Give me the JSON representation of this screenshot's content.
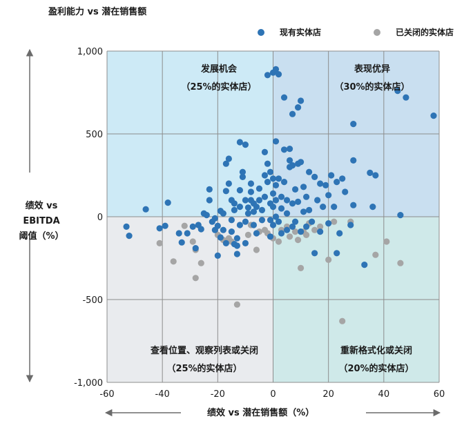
{
  "chart_data": {
    "type": "scatter",
    "title": "盈利能力 vs 潜在销售额",
    "xlabel": "绩效 vs 潜在销售额（%）",
    "ylabel_line1": "绩效 vs EBITDA",
    "ylabel_line2": "阈值（%）",
    "xlim": [
      -60,
      60
    ],
    "ylim": [
      -1000,
      1000
    ],
    "xticks": [
      "-60",
      "-40",
      "-20",
      "0",
      "20",
      "40",
      "60"
    ],
    "yticks": [
      "1,000",
      "500",
      "0",
      "-500",
      "-1,000"
    ],
    "legend": [
      "现有实体店",
      "已关闭的实体店"
    ],
    "legend_position": "top-right",
    "grid": true,
    "quadrants": {
      "top_left": {
        "line1": "发展机会",
        "line2": "（25%的实体店）",
        "color": "#cdeaf6"
      },
      "top_right": {
        "line1": "表现优异",
        "line2": "（30%的实体店）",
        "color": "#c9dff0"
      },
      "bottom_left": {
        "line1": "查看位置、观察列表或关闭",
        "line2": "（25%的实体店）",
        "color": "#e9ebee"
      },
      "bottom_right": {
        "line1": "重新格式化或关闭",
        "line2": "（20%的实体店）",
        "color": "#cfe9e9"
      }
    },
    "series": [
      {
        "name": "现有实体店",
        "color": "#2e74b5",
        "points": [
          [
            -53,
            -60
          ],
          [
            -52,
            -115
          ],
          [
            -46,
            45
          ],
          [
            -41,
            -70
          ],
          [
            -39,
            -55
          ],
          [
            -38,
            85
          ],
          [
            -34,
            -100
          ],
          [
            -33,
            -155
          ],
          [
            -31,
            -100
          ],
          [
            -29,
            -60
          ],
          [
            -28,
            -190
          ],
          [
            -27,
            -50
          ],
          [
            -26,
            -75
          ],
          [
            -25,
            20
          ],
          [
            -24,
            10
          ],
          [
            -23,
            165
          ],
          [
            -23,
            100
          ],
          [
            -22,
            -30
          ],
          [
            -21,
            -10
          ],
          [
            -21,
            -80
          ],
          [
            -20,
            -235
          ],
          [
            -20,
            -55
          ],
          [
            -19,
            -125
          ],
          [
            -19,
            35
          ],
          [
            -18,
            20
          ],
          [
            -18,
            -80
          ],
          [
            -17,
            -160
          ],
          [
            -17,
            155
          ],
          [
            -17,
            320
          ],
          [
            -16,
            350
          ],
          [
            -16,
            200
          ],
          [
            -15,
            -20
          ],
          [
            -15,
            -90
          ],
          [
            -15,
            100
          ],
          [
            -14,
            -165
          ],
          [
            -14,
            80
          ],
          [
            -14,
            40
          ],
          [
            -13,
            -130
          ],
          [
            -13,
            -175
          ],
          [
            -13,
            -225
          ],
          [
            -12,
            450
          ],
          [
            -12,
            160
          ],
          [
            -12,
            -50
          ],
          [
            -12,
            60
          ],
          [
            -11,
            270
          ],
          [
            -11,
            240
          ],
          [
            -10,
            -160
          ],
          [
            -10,
            435
          ],
          [
            -10,
            100
          ],
          [
            -10,
            -30
          ],
          [
            -9,
            55
          ],
          [
            -9,
            20
          ],
          [
            -8,
            150
          ],
          [
            -8,
            200
          ],
          [
            -8,
            100
          ],
          [
            -7,
            80
          ],
          [
            -7,
            -50
          ],
          [
            -7,
            30
          ],
          [
            -6,
            -100
          ],
          [
            -6,
            60
          ],
          [
            -5,
            170
          ],
          [
            -5,
            100
          ],
          [
            -4,
            40
          ],
          [
            -4,
            -20
          ],
          [
            -3,
            120
          ],
          [
            -3,
            390
          ],
          [
            -3,
            250
          ],
          [
            -2,
            855
          ],
          [
            -2,
            210
          ],
          [
            -2,
            320
          ],
          [
            -1,
            270
          ],
          [
            -1,
            80
          ],
          [
            -1,
            -20
          ],
          [
            -1,
            -120
          ],
          [
            0,
            870
          ],
          [
            0,
            230
          ],
          [
            0,
            140
          ],
          [
            0,
            60
          ],
          [
            0,
            -50
          ],
          [
            1,
            890
          ],
          [
            1,
            455
          ],
          [
            1,
            190
          ],
          [
            1,
            100
          ],
          [
            1,
            0
          ],
          [
            2,
            230
          ],
          [
            2,
            -30
          ],
          [
            2,
            860
          ],
          [
            3,
            120
          ],
          [
            3,
            -100
          ],
          [
            3,
            50
          ],
          [
            4,
            720
          ],
          [
            4,
            405
          ],
          [
            4,
            210
          ],
          [
            5,
            100
          ],
          [
            5,
            20
          ],
          [
            5,
            -80
          ],
          [
            6,
            410
          ],
          [
            6,
            300
          ],
          [
            6,
            340
          ],
          [
            7,
            620
          ],
          [
            7,
            310
          ],
          [
            7,
            80
          ],
          [
            7,
            -60
          ],
          [
            8,
            165
          ],
          [
            8,
            -30
          ],
          [
            9,
            660
          ],
          [
            9,
            320
          ],
          [
            9,
            90
          ],
          [
            10,
            700
          ],
          [
            10,
            330
          ],
          [
            10,
            -90
          ],
          [
            11,
            180
          ],
          [
            11,
            30
          ],
          [
            12,
            120
          ],
          [
            12,
            -60
          ],
          [
            13,
            270
          ],
          [
            13,
            40
          ],
          [
            14,
            -30
          ],
          [
            15,
            -220
          ],
          [
            15,
            240
          ],
          [
            16,
            100
          ],
          [
            17,
            -90
          ],
          [
            17,
            200
          ],
          [
            18,
            60
          ],
          [
            19,
            190
          ],
          [
            20,
            130
          ],
          [
            20,
            -40
          ],
          [
            21,
            250
          ],
          [
            22,
            60
          ],
          [
            23,
            -220
          ],
          [
            23,
            210
          ],
          [
            24,
            -100
          ],
          [
            25,
            230
          ],
          [
            26,
            150
          ],
          [
            28,
            -50
          ],
          [
            29,
            560
          ],
          [
            29,
            340
          ],
          [
            29,
            70
          ],
          [
            33,
            -290
          ],
          [
            35,
            265
          ],
          [
            36,
            60
          ],
          [
            37,
            250
          ],
          [
            45,
            760
          ],
          [
            46,
            10
          ],
          [
            48,
            720
          ],
          [
            58,
            610
          ]
        ]
      },
      {
        "name": "已关闭的实体店",
        "color": "#a5a5a5",
        "points": [
          [
            -41,
            -160
          ],
          [
            -36,
            -270
          ],
          [
            -32,
            -55
          ],
          [
            -29,
            -150
          ],
          [
            -28,
            -200
          ],
          [
            -28,
            -370
          ],
          [
            -26,
            -280
          ],
          [
            -20,
            -110
          ],
          [
            -18,
            -140
          ],
          [
            -16,
            -130
          ],
          [
            -15,
            -150
          ],
          [
            -13,
            -530
          ],
          [
            -9,
            -110
          ],
          [
            -8,
            -50
          ],
          [
            -6,
            -200
          ],
          [
            -5,
            -90
          ],
          [
            -3,
            -80
          ],
          [
            -2,
            -100
          ],
          [
            0,
            -130
          ],
          [
            2,
            -150
          ],
          [
            3,
            -80
          ],
          [
            5,
            -60
          ],
          [
            6,
            -120
          ],
          [
            8,
            -90
          ],
          [
            9,
            -140
          ],
          [
            10,
            -310
          ],
          [
            11,
            -90
          ],
          [
            12,
            -110
          ],
          [
            13,
            -40
          ],
          [
            15,
            -80
          ],
          [
            17,
            -60
          ],
          [
            20,
            -260
          ],
          [
            22,
            -30
          ],
          [
            25,
            -630
          ],
          [
            28,
            -30
          ],
          [
            37,
            -230
          ],
          [
            41,
            -150
          ],
          [
            46,
            -280
          ]
        ]
      }
    ]
  }
}
